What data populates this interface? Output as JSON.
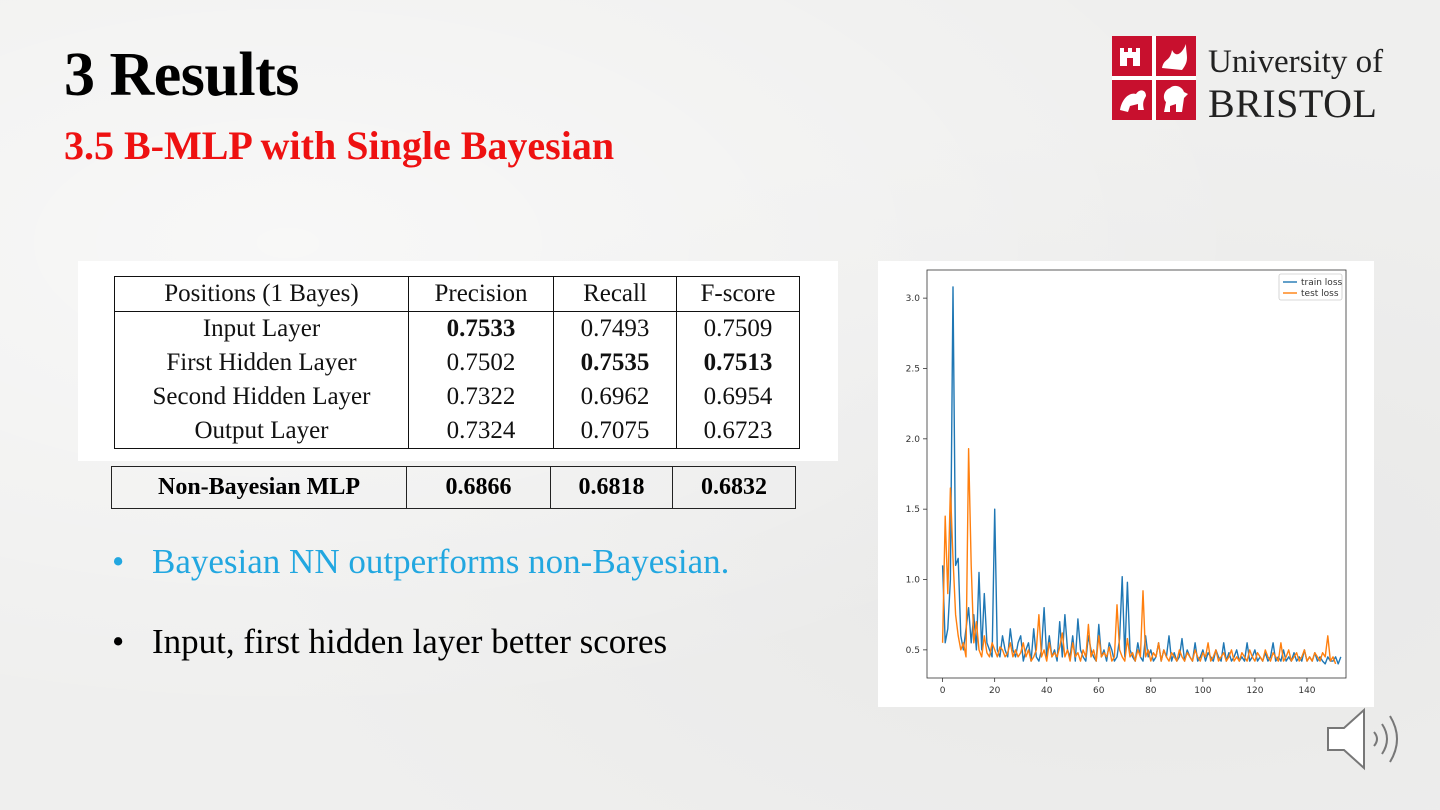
{
  "slide": {
    "title": "3 Results",
    "subtitle": "3.5 B-MLP with Single Bayesian"
  },
  "logo": {
    "line1": "University of",
    "line2": "BRISTOL",
    "shield_color": "#c8102e"
  },
  "results_table": {
    "headers": [
      "Positions (1 Bayes)",
      "Precision",
      "Recall",
      "F-score"
    ],
    "rows": [
      {
        "position": "Input Layer",
        "precision": "0.7533",
        "recall": "0.7493",
        "fscore": "0.7509"
      },
      {
        "position": "First Hidden Layer",
        "precision": "0.7502",
        "recall": "0.7535",
        "fscore": "0.7513"
      },
      {
        "position": "Second Hidden Layer",
        "precision": "0.7322",
        "recall": "0.6962",
        "fscore": "0.6954"
      },
      {
        "position": "Output Layer",
        "precision": "0.7324",
        "recall": "0.7075",
        "fscore": "0.6723"
      }
    ]
  },
  "baseline_table": {
    "name": "Non-Bayesian MLP",
    "precision": "0.6866",
    "recall": "0.6818",
    "fscore": "0.6832"
  },
  "bullets": [
    {
      "dot": "•",
      "text": "Bayesian NN outperforms non-Bayesian."
    },
    {
      "dot": "•",
      "text": "Input, first hidden layer better scores"
    }
  ],
  "icons": {
    "speaker": "speaker-icon"
  },
  "chart_data": {
    "type": "line",
    "title": "",
    "xlabel": "",
    "ylabel": "",
    "xlim": [
      -6,
      155
    ],
    "ylim": [
      0.3,
      3.2
    ],
    "xticks": [
      0,
      20,
      40,
      60,
      80,
      100,
      120,
      140
    ],
    "yticks": [
      0.5,
      1.0,
      1.5,
      2.0,
      2.5,
      3.0
    ],
    "grid": false,
    "legend_position": "top-right",
    "series": [
      {
        "name": "train loss",
        "color": "#1f77b4",
        "y": [
          1.1,
          0.55,
          0.65,
          1.0,
          3.08,
          1.1,
          1.15,
          0.6,
          0.5,
          0.65,
          0.8,
          0.55,
          0.75,
          0.5,
          1.05,
          0.5,
          0.9,
          0.55,
          0.5,
          0.45,
          1.5,
          0.5,
          0.45,
          0.6,
          0.5,
          0.45,
          0.65,
          0.5,
          0.45,
          0.55,
          0.6,
          0.42,
          0.5,
          0.55,
          0.42,
          0.65,
          0.45,
          0.42,
          0.5,
          0.8,
          0.45,
          0.6,
          0.45,
          0.5,
          0.42,
          0.7,
          0.45,
          0.75,
          0.5,
          0.45,
          0.6,
          0.42,
          0.72,
          0.5,
          0.45,
          0.42,
          0.6,
          0.5,
          0.45,
          0.42,
          0.68,
          0.45,
          0.5,
          0.42,
          0.55,
          0.5,
          0.42,
          0.45,
          0.58,
          1.02,
          0.45,
          0.98,
          0.5,
          0.45,
          0.42,
          0.55,
          0.45,
          0.42,
          0.6,
          0.45,
          0.5,
          0.42,
          0.45,
          0.55,
          0.42,
          0.5,
          0.45,
          0.6,
          0.42,
          0.48,
          0.42,
          0.45,
          0.58,
          0.42,
          0.5,
          0.45,
          0.42,
          0.55,
          0.42,
          0.45,
          0.5,
          0.42,
          0.48,
          0.45,
          0.42,
          0.5,
          0.45,
          0.42,
          0.55,
          0.42,
          0.48,
          0.42,
          0.45,
          0.5,
          0.42,
          0.45,
          0.42,
          0.55,
          0.42,
          0.45,
          0.5,
          0.42,
          0.45,
          0.42,
          0.48,
          0.42,
          0.45,
          0.55,
          0.42,
          0.45,
          0.42,
          0.5,
          0.42,
          0.45,
          0.42,
          0.48,
          0.42,
          0.45,
          0.42,
          0.5,
          0.42,
          0.45,
          0.42,
          0.48,
          0.42,
          0.45,
          0.42,
          0.4,
          0.45,
          0.42,
          0.42,
          0.45,
          0.4,
          0.45
        ]
      },
      {
        "name": "test loss",
        "color": "#ff7f0e",
        "y": [
          0.55,
          1.45,
          0.9,
          1.65,
          1.15,
          0.75,
          0.6,
          0.5,
          0.55,
          0.45,
          1.93,
          1.1,
          0.55,
          0.7,
          0.5,
          0.45,
          0.6,
          0.48,
          0.45,
          0.55,
          0.5,
          0.45,
          0.52,
          0.5,
          0.45,
          0.48,
          0.55,
          0.45,
          0.5,
          0.45,
          0.48,
          0.55,
          0.45,
          0.5,
          0.42,
          0.45,
          0.5,
          0.75,
          0.45,
          0.5,
          0.42,
          0.55,
          0.45,
          0.48,
          0.45,
          0.52,
          0.62,
          0.45,
          0.5,
          0.42,
          0.55,
          0.45,
          0.48,
          0.42,
          0.5,
          0.45,
          0.68,
          0.45,
          0.5,
          0.42,
          0.6,
          0.45,
          0.48,
          0.45,
          0.52,
          0.42,
          0.45,
          0.82,
          0.5,
          0.45,
          0.42,
          0.58,
          0.45,
          0.48,
          0.42,
          0.5,
          0.45,
          0.92,
          0.45,
          0.5,
          0.42,
          0.48,
          0.45,
          0.55,
          0.42,
          0.5,
          0.45,
          0.42,
          0.48,
          0.45,
          0.42,
          0.5,
          0.45,
          0.42,
          0.48,
          0.45,
          0.42,
          0.5,
          0.45,
          0.42,
          0.48,
          0.45,
          0.55,
          0.42,
          0.45,
          0.5,
          0.42,
          0.45,
          0.48,
          0.42,
          0.45,
          0.5,
          0.42,
          0.45,
          0.42,
          0.48,
          0.45,
          0.42,
          0.5,
          0.45,
          0.42,
          0.48,
          0.45,
          0.42,
          0.5,
          0.45,
          0.42,
          0.48,
          0.45,
          0.42,
          0.55,
          0.42,
          0.45,
          0.5,
          0.42,
          0.45,
          0.48,
          0.42,
          0.45,
          0.5,
          0.42,
          0.45,
          0.42,
          0.48,
          0.45,
          0.42,
          0.48,
          0.45,
          0.6,
          0.42,
          0.45,
          0.4
        ]
      }
    ]
  }
}
